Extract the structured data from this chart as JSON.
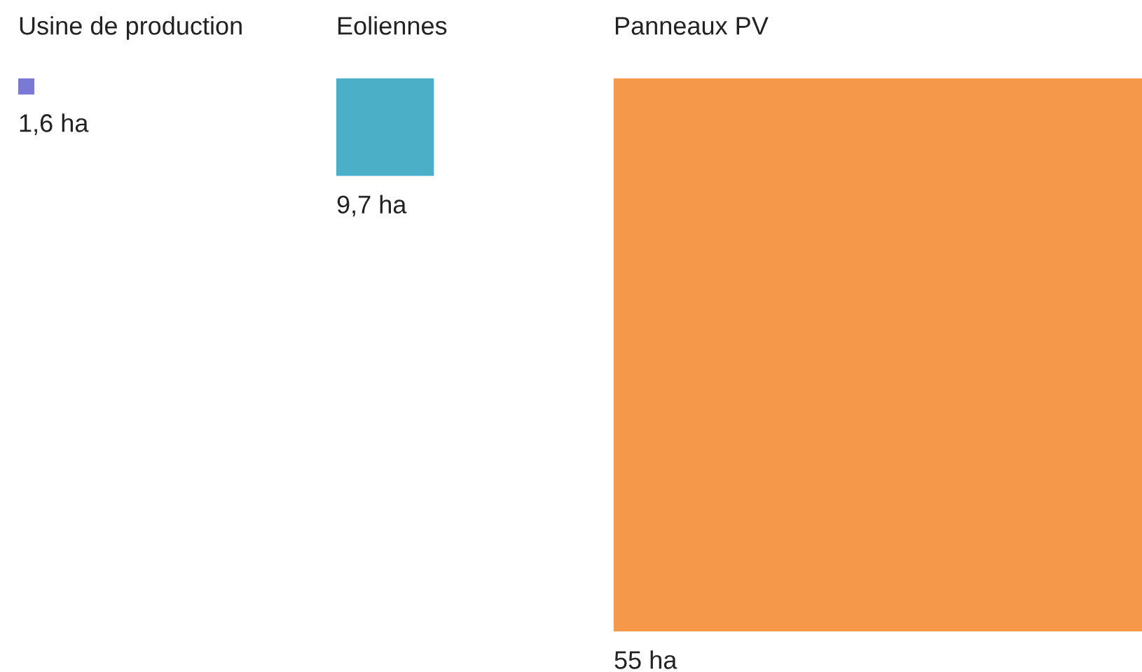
{
  "chart_data": {
    "type": "other",
    "categories": [
      "Usine de production",
      "Eoliennes",
      "Panneaux PV"
    ],
    "values": [
      1.6,
      9.7,
      55
    ],
    "colors": [
      "#7b79d6",
      "#4bafc8",
      "#f59849"
    ],
    "value_labels": [
      "1,6 ha",
      "9,7 ha",
      "55 ha"
    ]
  }
}
